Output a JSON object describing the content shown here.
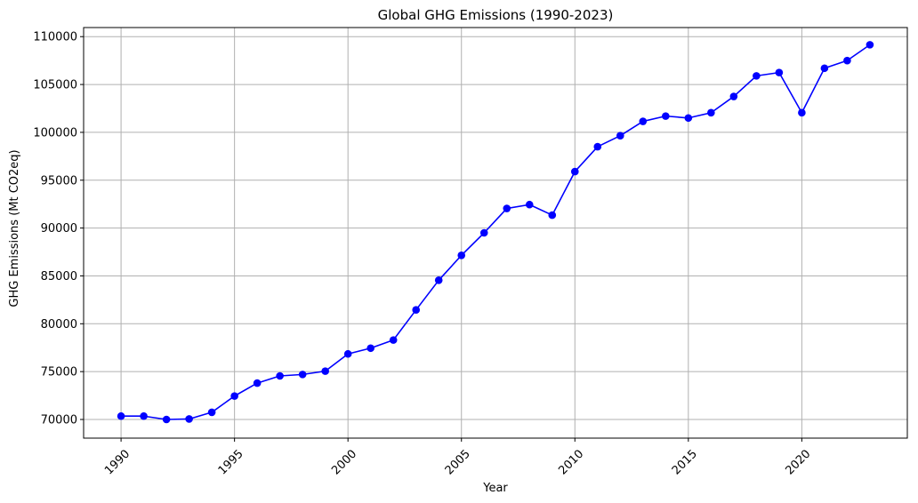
{
  "chart_data": {
    "type": "line",
    "title": "Global GHG Emissions (1990-2023)",
    "xlabel": "Year",
    "ylabel": "GHG Emissions (Mt CO2eq)",
    "xlim": [
      1988.35,
      2024.65
    ],
    "ylim": [
      68050,
      110950
    ],
    "xticks": [
      1990,
      1995,
      2000,
      2005,
      2010,
      2015,
      2020
    ],
    "yticks": [
      70000,
      75000,
      80000,
      85000,
      90000,
      95000,
      100000,
      105000,
      110000
    ],
    "grid": true,
    "x": [
      1990,
      1991,
      1992,
      1993,
      1994,
      1995,
      1996,
      1997,
      1998,
      1999,
      2000,
      2001,
      2002,
      2003,
      2004,
      2005,
      2006,
      2007,
      2008,
      2009,
      2010,
      2011,
      2012,
      2013,
      2014,
      2015,
      2016,
      2017,
      2018,
      2019,
      2020,
      2021,
      2022,
      2023
    ],
    "series": [
      {
        "color": "#0000ff",
        "marker": "circle",
        "values": [
          70350,
          70350,
          70000,
          70050,
          70750,
          72450,
          73800,
          74550,
          74700,
          75050,
          76850,
          77450,
          78300,
          81450,
          84550,
          87150,
          89500,
          92050,
          92450,
          91350,
          95900,
          98500,
          99650,
          101150,
          101700,
          101500,
          102050,
          103750,
          105900,
          106250,
          102050,
          106700,
          107500,
          109150
        ]
      }
    ]
  }
}
